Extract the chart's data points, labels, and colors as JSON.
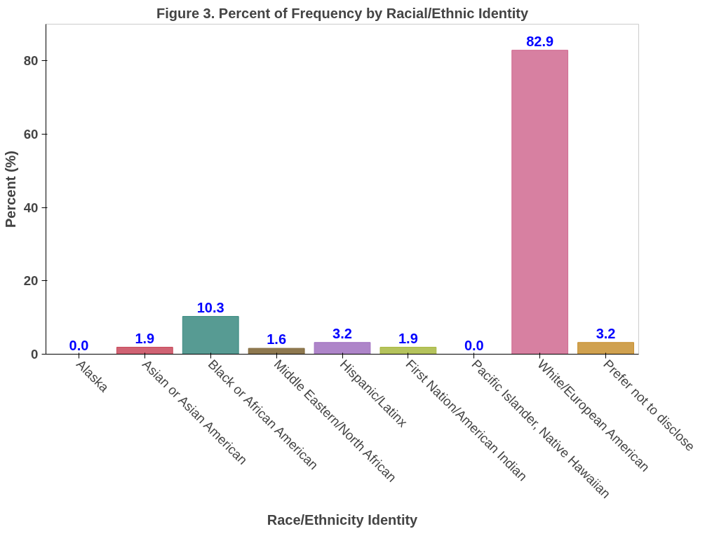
{
  "chart_data": {
    "type": "bar",
    "title": "Figure 3. Percent of Frequency by Racial/Ethnic Identity",
    "xlabel": "Race/Ethnicity Identity",
    "ylabel": "Percent (%)",
    "categories": [
      "Alaska",
      "Asian or Asian American",
      "Black or African American",
      "Middle Eastern/North African",
      "Hispanic/Latinx",
      "First Nation/American Indian",
      "Pacific Islander, Native Hawaiian",
      "White/European American",
      "Prefer not to disclose"
    ],
    "values": [
      0.0,
      1.9,
      10.3,
      1.6,
      3.2,
      1.9,
      0.0,
      82.9,
      3.2
    ],
    "colors": [
      "#e8e070",
      "#c8485a",
      "#3a8a80",
      "#7a6030",
      "#a070c0",
      "#a8b840",
      "#e0c0d0",
      "#d06a90",
      "#c89030"
    ],
    "value_labels": [
      "0.0",
      "1.9",
      "10.3",
      "1.6",
      "3.2",
      "1.9",
      "0.0",
      "82.9",
      "3.2"
    ],
    "ylim": [
      0,
      90
    ],
    "yticks": [
      0,
      20,
      40,
      60,
      80
    ],
    "grid": false
  }
}
